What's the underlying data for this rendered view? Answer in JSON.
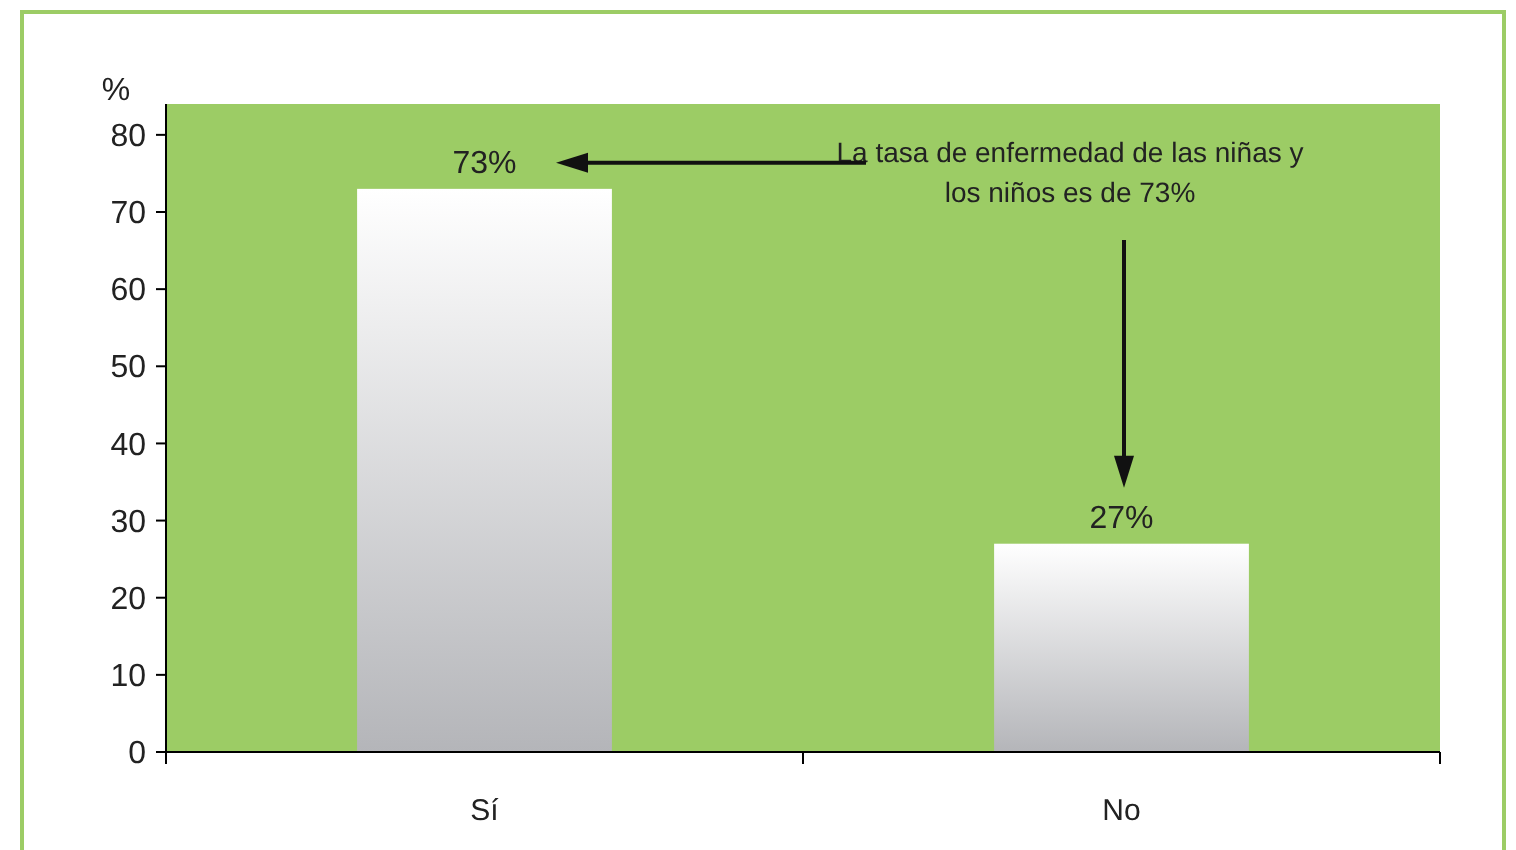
{
  "chart_data": {
    "type": "bar",
    "ylabel": "%",
    "categories": [
      "Sí",
      "No"
    ],
    "values": [
      73,
      27
    ],
    "value_labels": [
      "73%",
      "27%"
    ],
    "color": "#b4b5b9",
    "ylim": [
      0,
      84
    ],
    "yticks": [
      0,
      10,
      20,
      30,
      40,
      50,
      60,
      70,
      80
    ],
    "grid": false,
    "annotations": [
      "La tasa de enfermedad de las niñas y los niños es de 73%"
    ]
  }
}
